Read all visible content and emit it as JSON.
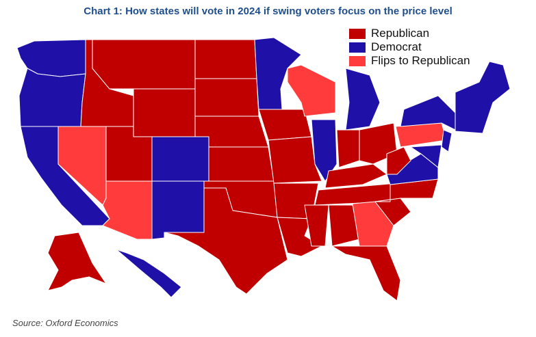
{
  "title": "Chart 1: How states will vote in 2024 if swing voters focus on the price level",
  "source": "Source: Oxford Economics",
  "legend": [
    {
      "key": "republican",
      "label": "Republican",
      "color": "#c00000"
    },
    {
      "key": "democrat",
      "label": "Democrat",
      "color": "#1f10a8"
    },
    {
      "key": "flip",
      "label": "Flips to Republican",
      "color": "#ff3b3b"
    }
  ],
  "states": {
    "WA": "democrat",
    "OR": "democrat",
    "CA": "democrat",
    "NV": "flip",
    "ID": "republican",
    "MT": "republican",
    "WY": "republican",
    "UT": "republican",
    "AZ": "flip",
    "CO": "democrat",
    "NM": "democrat",
    "ND": "republican",
    "SD": "republican",
    "NE": "republican",
    "KS": "republican",
    "OK": "republican",
    "TX": "republican",
    "MN": "democrat",
    "IA": "republican",
    "MO": "republican",
    "AR": "republican",
    "LA": "republican",
    "WI": "flip",
    "IL": "democrat",
    "MI": "democrat",
    "IN": "republican",
    "OH": "republican",
    "KY": "republican",
    "TN": "republican",
    "MS": "republican",
    "AL": "republican",
    "GA": "flip",
    "FL": "republican",
    "SC": "republican",
    "NC": "republican",
    "VA": "democrat",
    "WV": "republican",
    "PA": "flip",
    "NY": "democrat",
    "NE_REGION": "democrat",
    "NJ": "democrat",
    "MD": "democrat",
    "DE": "democrat",
    "AK": "republican",
    "HI": "democrat"
  }
}
